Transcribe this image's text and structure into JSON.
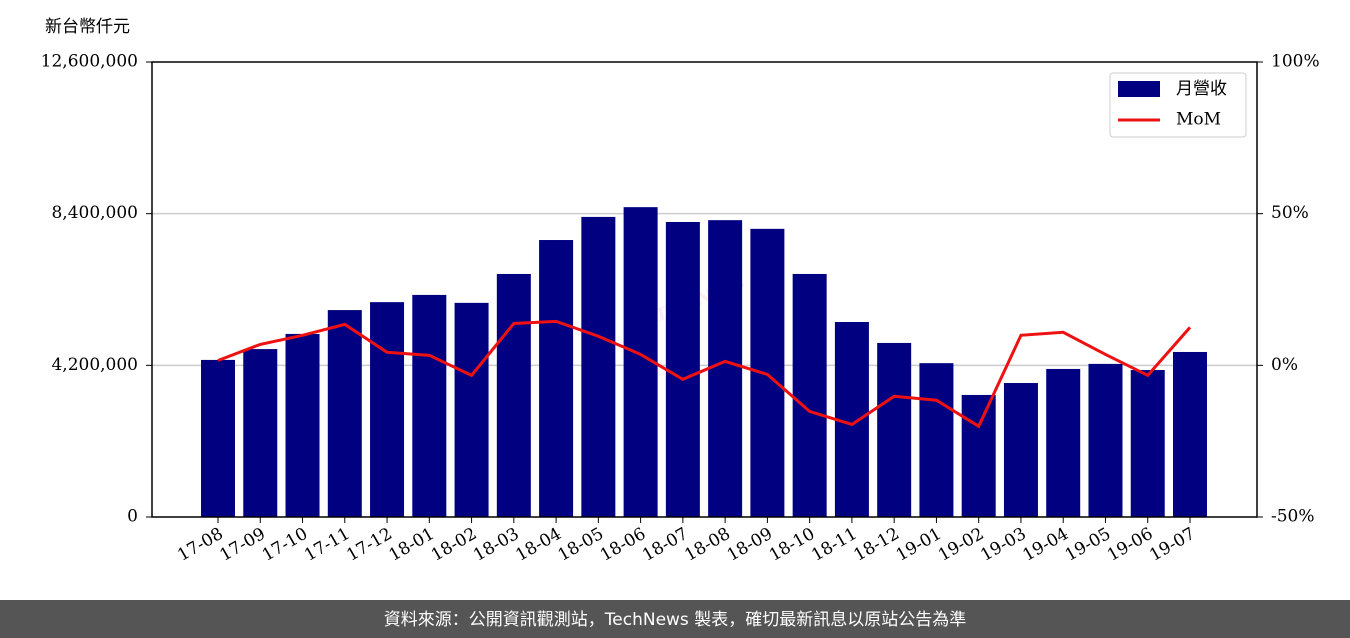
{
  "chart_data": {
    "type": "bar",
    "y_axis_label": "新台幣仟元",
    "watermark": "TechNews",
    "footer": "資料來源：公開資訊觀測站，TechNews 製表，確切最新訊息以原站公告為準",
    "categories": [
      "17-08",
      "17-09",
      "17-10",
      "17-11",
      "17-12",
      "18-01",
      "18-02",
      "18-03",
      "18-04",
      "18-05",
      "18-06",
      "18-07",
      "18-08",
      "18-09",
      "18-10",
      "18-11",
      "18-12",
      "19-01",
      "19-02",
      "19-03",
      "19-04",
      "19-05",
      "19-06",
      "19-07"
    ],
    "series": [
      {
        "name": "月營收",
        "type": "bar",
        "color": "#000080",
        "values": [
          4350000,
          4650000,
          5070000,
          5730000,
          5950000,
          6150000,
          5930000,
          6730000,
          7670000,
          8310000,
          8580000,
          8170000,
          8220000,
          7980000,
          6730000,
          5400000,
          4820000,
          4260000,
          3380000,
          3710000,
          4100000,
          4240000,
          4070000,
          4570000
        ]
      },
      {
        "name": "MoM",
        "type": "line",
        "axis": "y2",
        "color": "#ee1111",
        "values": [
          1.6,
          6.9,
          9.9,
          13.5,
          4.3,
          3.3,
          -3.3,
          13.8,
          14.5,
          9.6,
          3.6,
          -4.6,
          1.3,
          -3.0,
          -15.2,
          -19.5,
          -10.2,
          -11.5,
          -20.1,
          9.9,
          10.9,
          3.6,
          -3.3,
          12.5
        ]
      }
    ],
    "ylim": [
      0,
      12600000
    ],
    "yticks": [
      0,
      {
        "value": 4200000,
        "label": "4,200,000"
      },
      {
        "value": 8400000,
        "label": "8,400,000"
      },
      {
        "value": 12600000,
        "label": "12,600,000"
      }
    ],
    "y2lim": [
      -50,
      100
    ],
    "y2ticks": [
      {
        "value": -50,
        "label": "-50%"
      },
      {
        "value": 0,
        "label": "0%"
      },
      {
        "value": 50,
        "label": "50%"
      },
      {
        "value": 100,
        "label": "100%"
      }
    ],
    "grid": true,
    "legend": "upper right"
  }
}
